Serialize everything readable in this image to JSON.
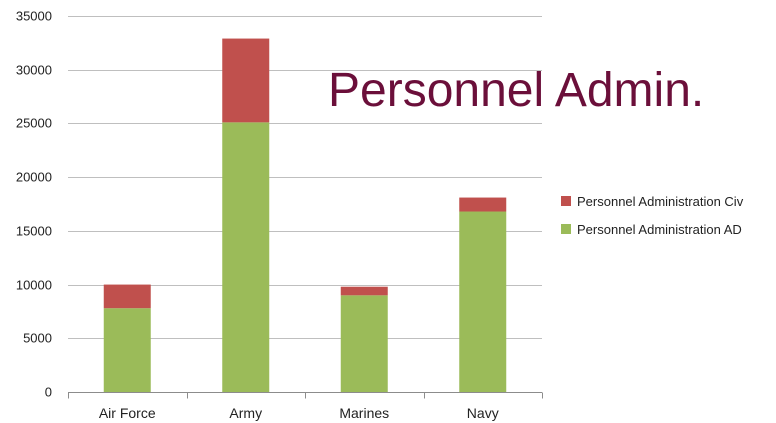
{
  "chart_data": {
    "type": "bar",
    "stacked": true,
    "title": "Personnel Admin.",
    "xlabel": "",
    "ylabel": "",
    "categories": [
      "Air Force",
      "Army",
      "Marines",
      "Navy"
    ],
    "ylim": [
      0,
      35000
    ],
    "yticks": [
      0,
      5000,
      10000,
      15000,
      20000,
      25000,
      30000,
      35000
    ],
    "grid": true,
    "legend_position": "right",
    "series": [
      {
        "name": "Personnel Administration AD",
        "color": "#9bbb59",
        "values": [
          7800,
          25100,
          9000,
          16800
        ]
      },
      {
        "name": "Personnel Administration Civ",
        "color": "#c0504d",
        "values": [
          2200,
          7800,
          800,
          1300
        ]
      }
    ]
  }
}
